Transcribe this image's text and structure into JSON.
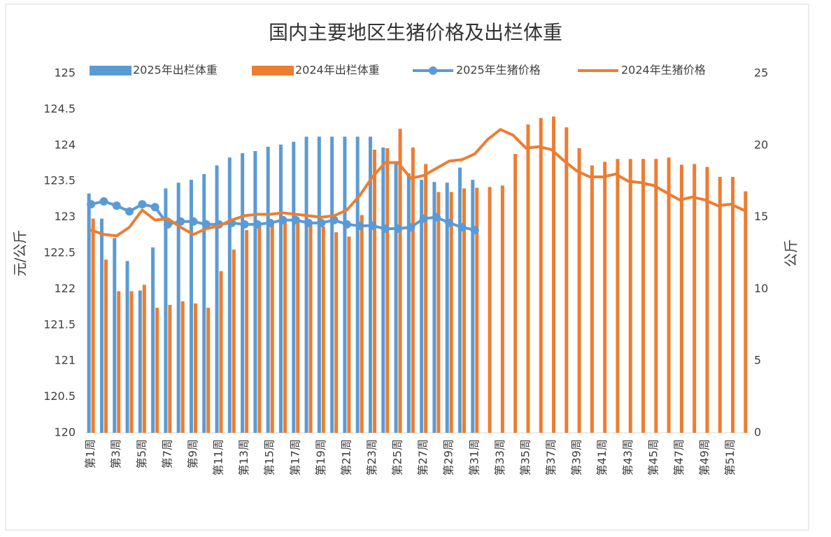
{
  "chart_data": {
    "type": "bar-line",
    "title": "国内主要地区生猪价格及出栏体重",
    "y_label": "元/公斤",
    "y2_label": "公斤",
    "categories": [
      "第1周",
      null,
      "第3周",
      null,
      "第5周",
      null,
      "第7周",
      null,
      "第9周",
      null,
      "第11周",
      null,
      "第13周",
      null,
      "第15周",
      null,
      "第17周",
      null,
      "第19周",
      null,
      "第21周",
      null,
      "第23周",
      null,
      "第25周",
      null,
      "第27周",
      null,
      "第29周",
      null,
      "第31周",
      null,
      "第33周",
      null,
      "第35周",
      null,
      "第37周",
      null,
      "第39周",
      null,
      "第41周",
      null,
      "第43周",
      null,
      "第45周",
      null,
      "第47周",
      null,
      "第49周",
      null,
      "第51周",
      null
    ],
    "ylim": [
      120,
      125
    ],
    "yticks": [
      120,
      120.5,
      121,
      121.5,
      122,
      122.5,
      123,
      123.5,
      124,
      124.5,
      125
    ],
    "y2lim": [
      0,
      25
    ],
    "y2ticks": [
      0,
      5,
      10,
      15,
      20,
      25
    ],
    "grid": false,
    "legend": "top",
    "series": [
      {
        "name": "2025年出栏体重",
        "kind": "bar",
        "color": "#5b9bd5",
        "values": [
          123.33,
          122.98,
          122.71,
          122.39,
          121.98,
          122.58,
          123.4,
          123.48,
          123.52,
          123.6,
          123.72,
          123.83,
          123.89,
          123.92,
          123.98,
          124.01,
          124.05,
          124.12,
          124.12,
          124.12,
          124.12,
          124.12,
          124.12,
          123.97,
          123.77,
          123.61,
          123.52,
          123.49,
          123.48,
          123.69,
          123.52,
          null,
          null,
          null,
          null,
          null,
          null,
          null,
          null,
          null,
          null,
          null,
          null,
          null,
          null,
          null,
          null,
          null,
          null,
          null,
          null,
          null
        ]
      },
      {
        "name": "2024年出栏体重",
        "kind": "bar",
        "color": "#ed7d31",
        "values": [
          122.98,
          122.41,
          121.97,
          121.97,
          122.06,
          121.74,
          121.78,
          121.83,
          121.8,
          121.74,
          122.25,
          122.55,
          122.82,
          122.89,
          122.94,
          122.94,
          122.93,
          122.89,
          122.87,
          122.79,
          122.73,
          123.03,
          123.94,
          123.96,
          124.23,
          123.97,
          123.74,
          123.35,
          123.35,
          123.4,
          123.41,
          123.42,
          123.44,
          123.88,
          124.29,
          124.38,
          124.4,
          124.25,
          123.96,
          123.72,
          123.77,
          123.81,
          123.81,
          123.81,
          123.81,
          123.83,
          123.73,
          123.74,
          123.7,
          123.56,
          123.56,
          123.36
        ]
      },
      {
        "name": "2025年生猪价格",
        "kind": "line",
        "marker": true,
        "axis": "y2",
        "color": "#5b9bd5",
        "values": [
          15.9,
          16.1,
          15.8,
          15.4,
          15.9,
          15.7,
          14.5,
          14.7,
          14.7,
          14.5,
          14.5,
          14.6,
          14.5,
          14.5,
          14.6,
          14.8,
          14.8,
          14.6,
          14.6,
          14.8,
          14.5,
          14.4,
          14.4,
          14.2,
          14.2,
          14.3,
          14.9,
          15.0,
          14.6,
          14.3,
          14.1,
          null,
          null,
          null,
          null,
          null,
          null,
          null,
          null,
          null,
          null,
          null,
          null,
          null,
          null,
          null,
          null,
          null,
          null,
          null,
          null,
          null
        ]
      },
      {
        "name": "2024年生猪价格",
        "kind": "line",
        "marker": false,
        "axis": "y2",
        "color": "#ed7d31",
        "values": [
          14.1,
          13.8,
          13.7,
          14.3,
          15.5,
          14.8,
          14.9,
          14.3,
          13.8,
          14.2,
          14.4,
          14.8,
          15.1,
          15.2,
          15.2,
          15.3,
          15.2,
          15.1,
          15.0,
          15.1,
          15.5,
          16.5,
          17.8,
          18.8,
          18.8,
          17.7,
          17.9,
          18.4,
          18.9,
          19.0,
          19.4,
          20.4,
          21.1,
          20.7,
          19.8,
          19.9,
          19.7,
          18.9,
          18.2,
          17.8,
          17.8,
          18.0,
          17.5,
          17.4,
          17.2,
          16.7,
          16.2,
          16.4,
          16.2,
          15.8,
          15.9,
          15.5
        ]
      }
    ]
  }
}
